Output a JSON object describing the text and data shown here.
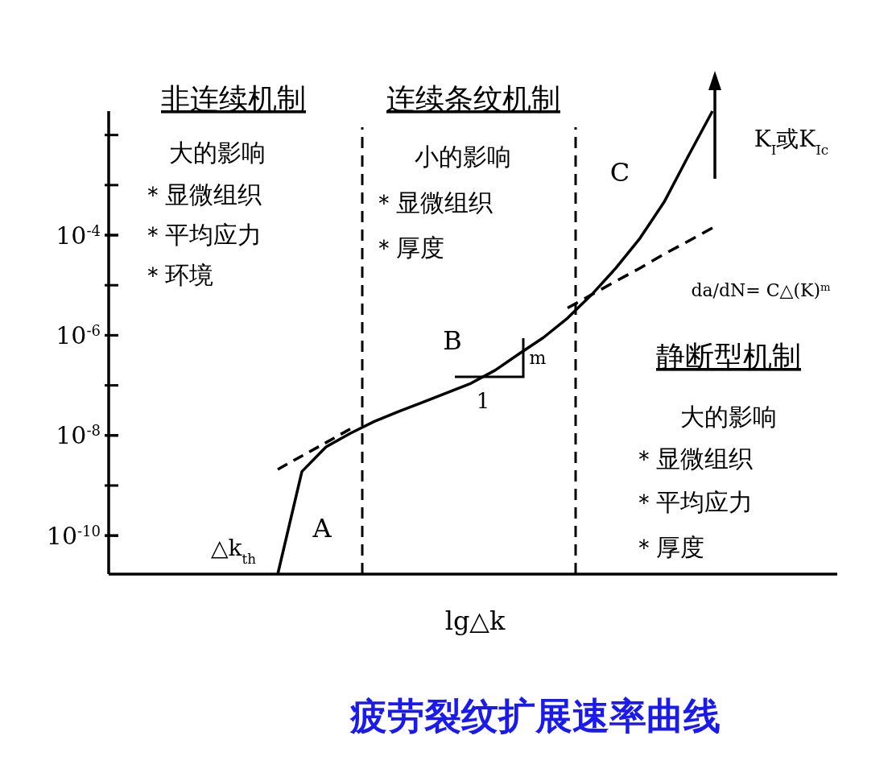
{
  "chart_data": {
    "type": "line",
    "title": "疲劳裂纹扩展速率曲线",
    "xlabel": "lg△k",
    "categories": [
      null,
      null,
      null,
      null,
      null,
      null,
      null,
      null,
      null,
      null,
      null,
      null,
      null,
      null,
      null,
      null,
      null,
      null,
      null
    ],
    "series": [
      {
        "color": "#000000",
        "line_style": "solid",
        "values": [
          1.7e-11,
          1.9e-09,
          5.9e-09,
          1.1e-08,
          1.9e-08,
          3e-08,
          4.6e-08,
          7.1e-08,
          1.1e-07,
          2e-07,
          4.3e-07,
          9e-07,
          2.2e-06,
          6.5e-06,
          2.2e-05,
          8.7e-05,
          0.00046,
          0.0038,
          0.03
        ]
      },
      {
        "color": "#000000",
        "line_style": "dashed",
        "values": [
          2.1e-09,
          3.9e-09,
          7.2e-09,
          1.35e-08,
          null,
          null,
          null,
          null,
          null,
          null,
          null,
          null,
          null,
          null,
          null,
          null,
          null,
          null,
          null
        ]
      },
      {
        "color": "#000000",
        "line_style": "dashed",
        "values": [
          null,
          null,
          null,
          null,
          null,
          null,
          null,
          null,
          null,
          null,
          null,
          null,
          3.5e-06,
          6.5e-06,
          1.2e-05,
          2.2e-05,
          4.2e-05,
          7.6e-05,
          0.00014
        ]
      }
    ],
    "log": true,
    "ylim": [
      1.7e-11,
      0.03
    ],
    "yticks": [
      {
        "value": 0.0001,
        "label": "10$^{-4}$"
      },
      {
        "value": 1e-06,
        "label": "10$^{-6}$"
      },
      {
        "value": 1e-08,
        "label": "10$^{-8}$"
      },
      {
        "value": 1e-10,
        "label": "10$^{-10}$"
      }
    ],
    "tick_labels": "y",
    "annotations": [
      "非连续机制",
      "大的影响",
      "＊显微组织",
      "＊平均应力",
      "＊环境",
      "连续条纹机制",
      "小的影响",
      "＊显微组织",
      "＊厚度",
      "静断型机制",
      "大的影响",
      "＊显微组织",
      "＊平均应力",
      "＊厚度",
      "A",
      "B",
      "C",
      "△k$_{th}$",
      "K$_{I}$或K$_{Ic}$",
      "da/dN= C△(K)$^{m}$",
      "1",
      "m"
    ]
  }
}
